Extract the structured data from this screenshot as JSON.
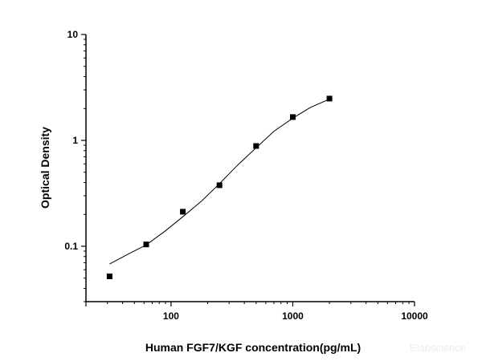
{
  "chart_data": {
    "type": "scatter",
    "title": "",
    "xlabel": "Human FGF7/KGF concentration(pg/mL)",
    "ylabel": "Optical Density",
    "xscale": "log",
    "yscale": "log",
    "xlim": [
      20,
      10000
    ],
    "ylim": [
      0.03,
      10
    ],
    "x_ticks": [
      100,
      1000,
      10000
    ],
    "x_tick_labels": [
      "100",
      "1000",
      "10000"
    ],
    "y_ticks": [
      0.1,
      1,
      10
    ],
    "y_tick_labels": [
      "0.1",
      "1",
      "10"
    ],
    "grid": false,
    "legend": null,
    "series": [
      {
        "name": "Standard points",
        "marker": "square",
        "x": [
          31.25,
          62.5,
          125,
          250,
          500,
          1000,
          2000
        ],
        "y": [
          0.052,
          0.104,
          0.212,
          0.377,
          0.885,
          1.66,
          2.48
        ]
      },
      {
        "name": "Fitted curve",
        "style": "line",
        "x": [
          31.25,
          45,
          62.5,
          90,
          125,
          180,
          250,
          350,
          500,
          700,
          1000,
          1400,
          2000
        ],
        "y": [
          0.068,
          0.085,
          0.103,
          0.14,
          0.19,
          0.27,
          0.39,
          0.58,
          0.85,
          1.22,
          1.62,
          2.05,
          2.45
        ]
      }
    ],
    "watermark": "Elabscience"
  }
}
